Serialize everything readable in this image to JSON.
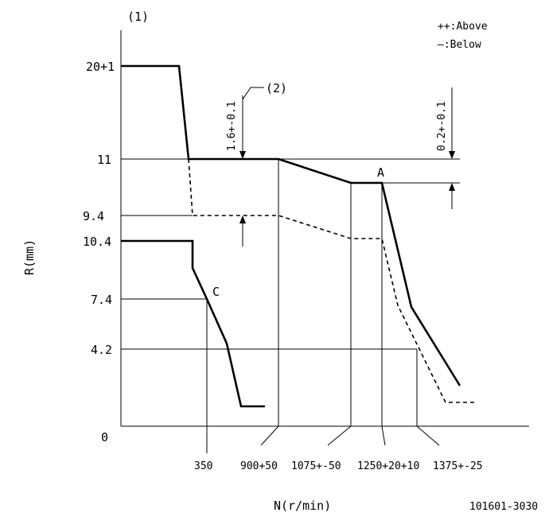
{
  "diagram": {
    "label_1": "(1)",
    "label_2": "(2)",
    "legend": {
      "above": "++:Above",
      "below": "—:Below"
    },
    "y_axis": {
      "title": "R(mm)",
      "ticks": [
        "20+1",
        "11",
        "9.4",
        "10.4",
        "7.4",
        "4.2",
        "0"
      ]
    },
    "x_axis": {
      "title": "N(r/min)",
      "ticks": [
        "350",
        "900+50",
        "1075+-50",
        "1250+20+10",
        "1375+-25"
      ]
    },
    "dimensions": {
      "left": "1.6+-0.1",
      "right": "0.2+-0.1"
    },
    "points": {
      "a": "A",
      "c": "C"
    },
    "drawing_number": "101601-3030"
  }
}
